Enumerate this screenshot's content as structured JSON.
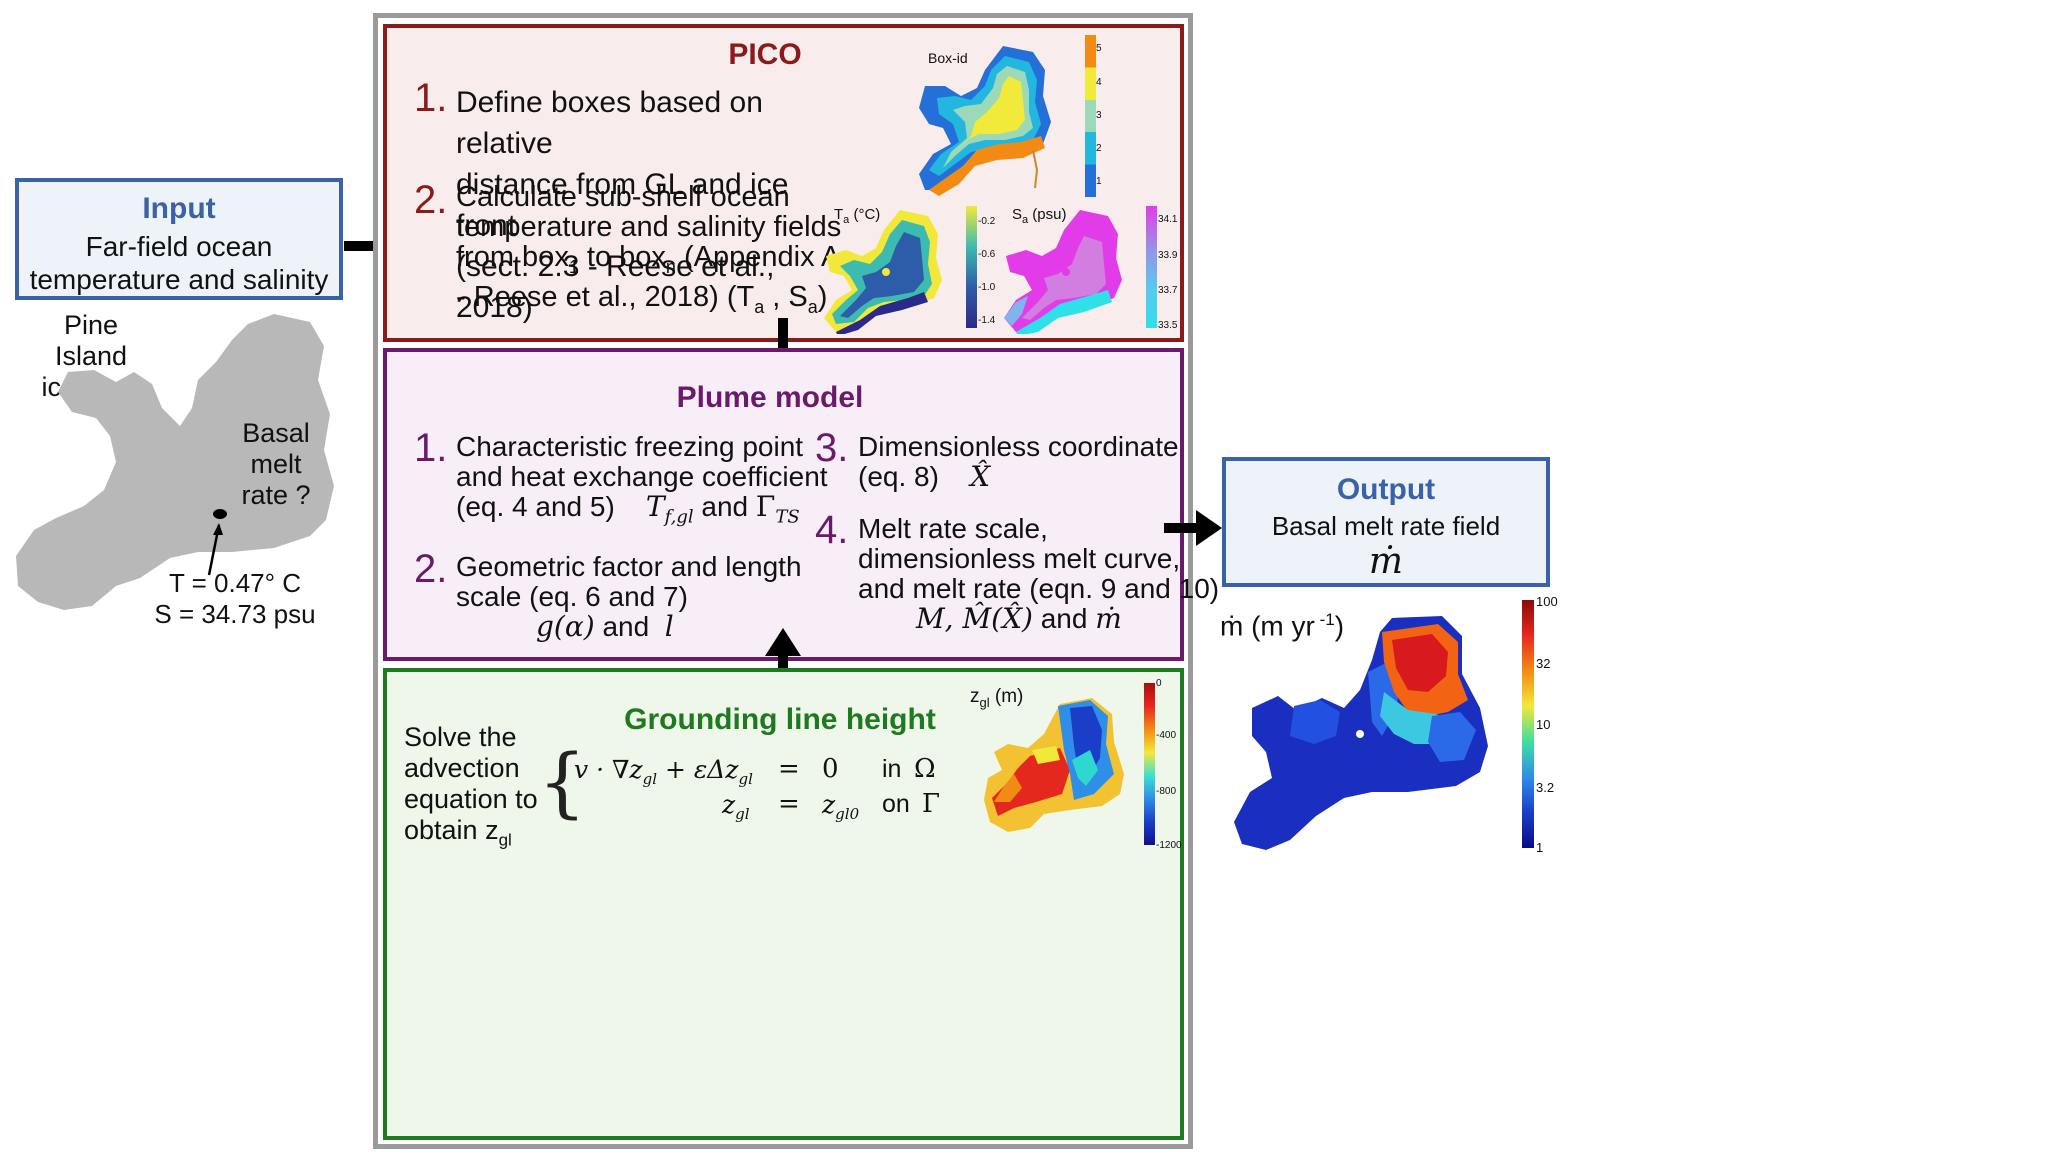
{
  "input": {
    "title": "Input",
    "line1": "Far-field ocean",
    "line2": "temperature and salinity"
  },
  "pine_island": {
    "label1": "Pine Island",
    "label2": "ice shelf",
    "basal1": "Basal melt",
    "basal2": "rate ?",
    "temp": "T = 0.47° C",
    "sal": "S = 34.73 psu"
  },
  "pico": {
    "title": "PICO",
    "step1_num": "1.",
    "step1_text": "Define boxes based on relative\ndistance from GL and ice front\n(sect. 2.3 - Reese et al., 2018)",
    "step2_num": "2.",
    "step2_l1": "Calculate sub-shelf ocean",
    "step2_l2": "temperature and salinity fields",
    "step2_l3a": "from box",
    "step2_l3sub1": "1",
    "step2_l3b": " to box",
    "step2_l3sub2": "n",
    "step2_l3c": " (Appendix A",
    "step2_l4a": "- Reese et al., 2018) (T",
    "step2_l4sub1": "a",
    "step2_l4b": " , S",
    "step2_l4sub2": "a",
    "step2_l4c": ")",
    "boxid_label": "Box-id",
    "boxid_ticks": [
      "5",
      "4",
      "3",
      "2",
      "1"
    ],
    "ta_label": "T",
    "ta_sub": "a",
    "ta_unit": " (°C)",
    "ta_ticks": [
      "-0.2",
      "-0.6",
      "-1.0",
      "-1.4"
    ],
    "sa_label": "S",
    "sa_sub": "a",
    "sa_unit": " (psu)",
    "sa_ticks": [
      "34.1",
      "33.9",
      "33.7",
      "33.5"
    ]
  },
  "plume": {
    "title": "Plume model",
    "s1_num": "1.",
    "s1_l1": "Characteristic  freezing point",
    "s1_l2": "and heat exchange coefficient",
    "s1_l3": "(eq. 4 and 5)",
    "s1_m1": "T",
    "s1_m1sub": "f,gl",
    "s1_and": "and",
    "s1_m2": "Γ",
    "s1_m2sub": "TS",
    "s2_num": "2.",
    "s2_l1": "Geometric factor and length",
    "s2_l2": "scale (eq. 6 and 7)",
    "s2_m1": "g(α)",
    "s2_and": "and",
    "s2_m2": "l",
    "s3_num": "3.",
    "s3_l1": "Dimensionless coordinate",
    "s3_l2": "(eq. 8)",
    "s3_m": "X̂",
    "s4_num": "4.",
    "s4_l1": "Melt rate  scale,",
    "s4_l2": "dimensionless melt curve,",
    "s4_l3": "and melt rate (eqn. 9 and 10)",
    "s4_m1": "M, M̂(X̂)",
    "s4_and": "and",
    "s4_m2": "ṁ"
  },
  "grounding": {
    "title": "Grounding line height",
    "solve_l1": "Solve the",
    "solve_l2": "advection",
    "solve_l3": "equation to",
    "solve_l4a": "obtain z",
    "solve_l4sub": "gl",
    "eq1_lhs": "v · ∇z",
    "eq1_lhs_sub": "gl",
    "eq1_mid": " + εΔz",
    "eq1_mid_sub": "gl",
    "eq_equals": "=",
    "eq1_rhs": "0",
    "eq1_in": "in",
    "eq1_dom": "Ω",
    "eq2_lhs": "z",
    "eq2_lhs_sub": "gl",
    "eq2_rhs": "z",
    "eq2_rhs_sub": "gl0",
    "eq2_on": "on",
    "eq2_dom": "Γ",
    "zgl_label": "z",
    "zgl_sub": "gl",
    "zgl_unit": " (m)",
    "zgl_ticks": [
      "0",
      "-400",
      "-800",
      "-1200"
    ]
  },
  "output": {
    "title": "Output",
    "line1": "Basal melt rate field",
    "symbol": "ṁ",
    "melt_label": "ṁ (m yr",
    "melt_sup": " -1",
    "melt_close": ")",
    "ticks": [
      "100",
      "32",
      "10",
      "3.2",
      "1"
    ]
  },
  "colors": {
    "blue_box": "#3a62a7",
    "pico_border": "#8b1a1a",
    "pico_bg": "#f8ecec",
    "plume_border": "#6b1a6b",
    "plume_bg": "#f7eef7",
    "gl_border": "#1e7a1e",
    "gl_bg": "#eef7ea",
    "outer_border": "#9a9a9a",
    "ice_gray": "#b8b8b8"
  },
  "icons": [
    "right-arrow-icon",
    "down-arrow-icon",
    "up-arrow-icon"
  ]
}
